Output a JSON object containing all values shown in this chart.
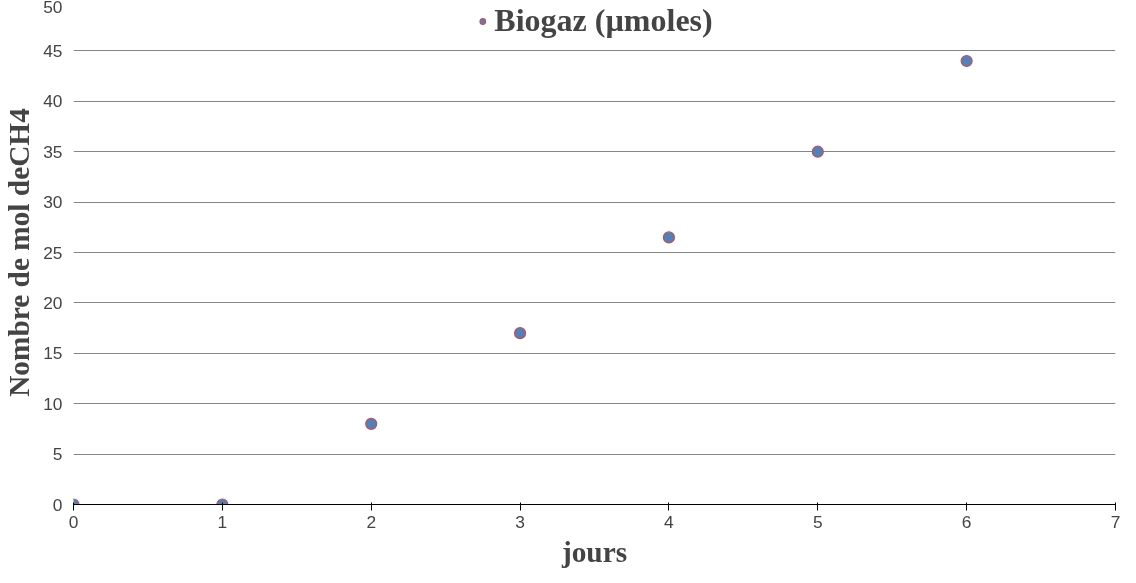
{
  "chart_data": {
    "type": "scatter",
    "xlabel": "jours",
    "ylabel": "Nombre de mol deCH4",
    "x": [
      0,
      1,
      2,
      3,
      4,
      5,
      6
    ],
    "series": [
      {
        "name": "Biogaz (µmoles)",
        "color": "#4f81bd",
        "values": [
          0,
          0,
          8,
          17,
          26.5,
          35,
          44
        ]
      }
    ],
    "xlim": [
      0,
      7
    ],
    "xticks": [
      0,
      1,
      2,
      3,
      4,
      5,
      6,
      7
    ],
    "ylim": [
      0,
      50
    ],
    "yticks": [
      0,
      5,
      10,
      15,
      20,
      25,
      30,
      35,
      40,
      45,
      50
    ],
    "grid": "y",
    "legend": "top",
    "marker": "circle"
  }
}
